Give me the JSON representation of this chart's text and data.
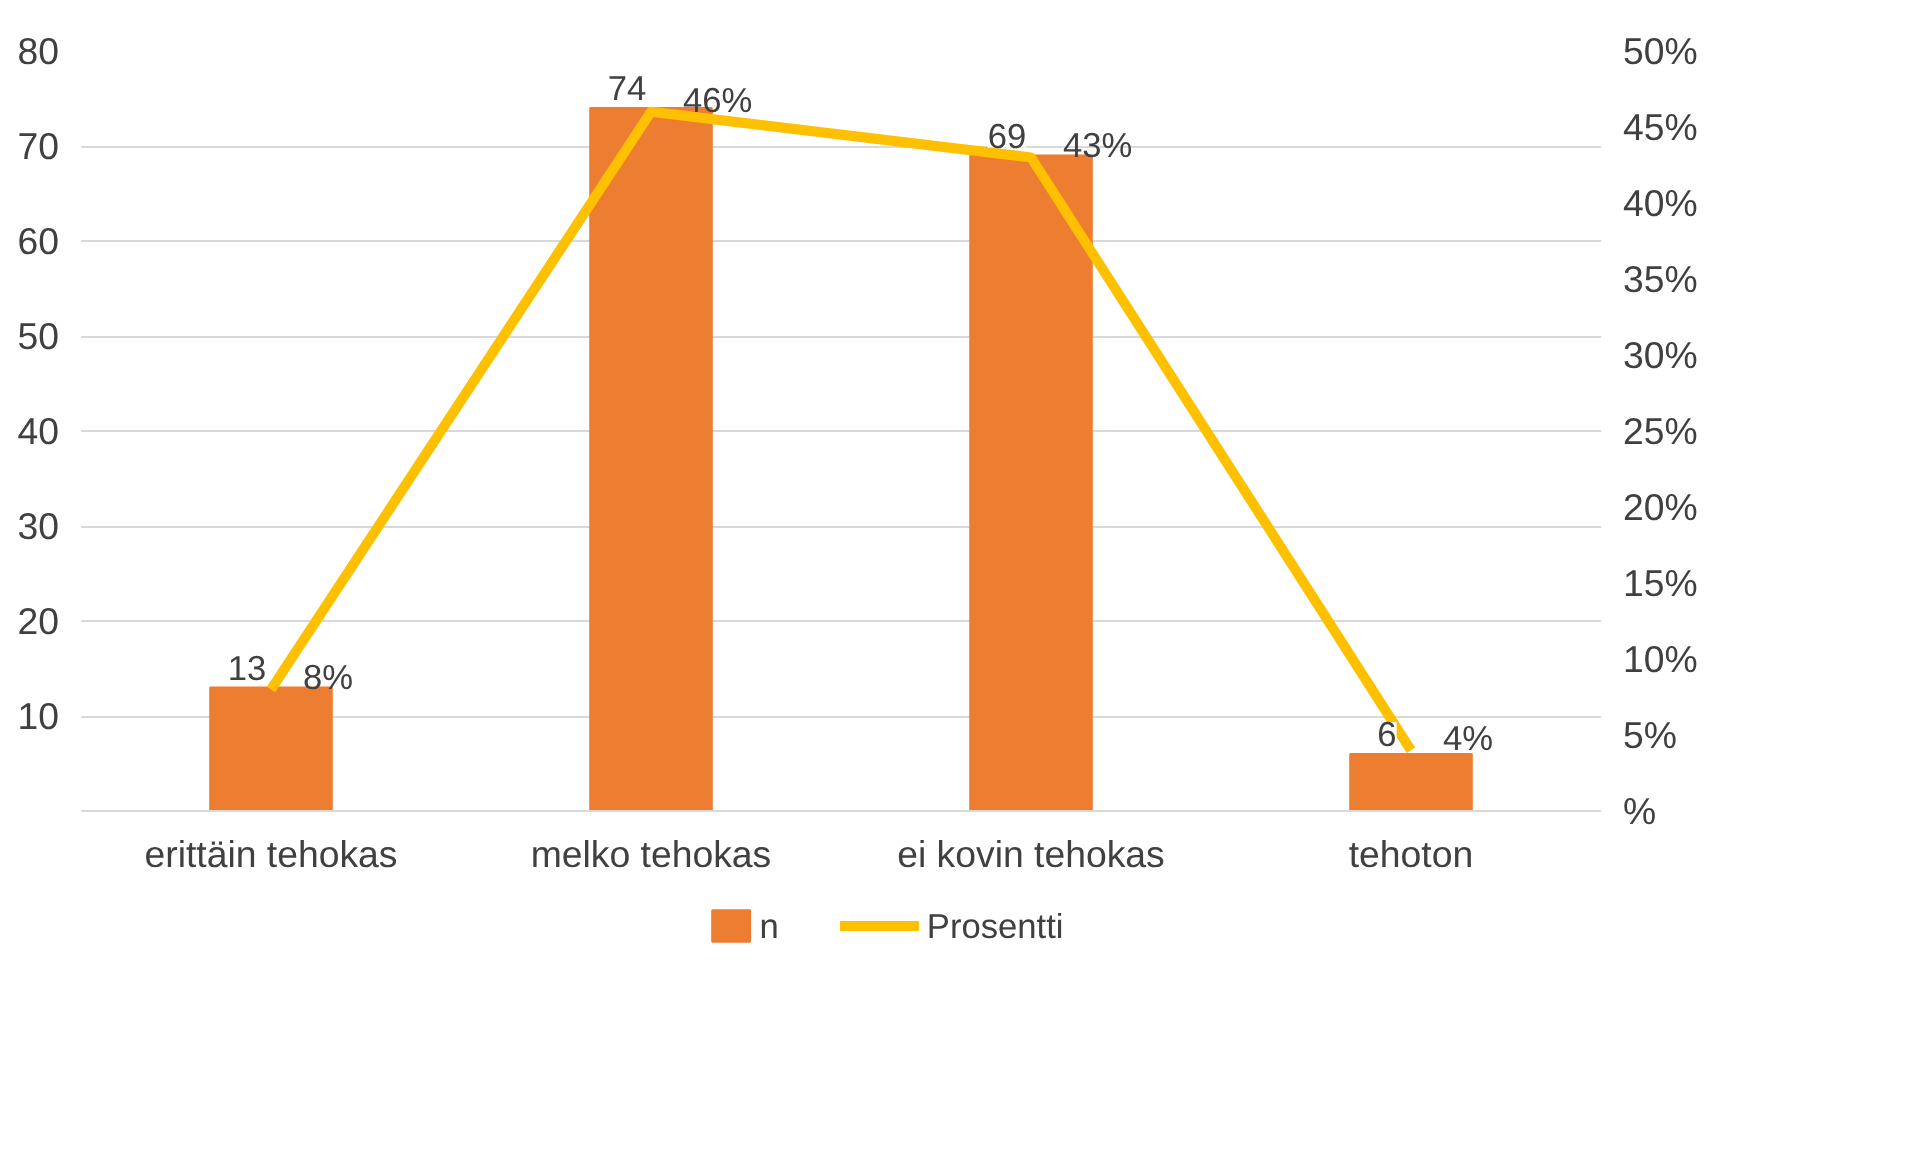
{
  "chart_data": {
    "type": "bar",
    "categories": [
      "erittäin tehokas",
      "melko tehokas",
      "ei kovin tehokas",
      "tehoton"
    ],
    "series": [
      {
        "name": "n",
        "type": "bar",
        "color": "#ed7d31",
        "values": [
          13,
          74,
          69,
          6
        ],
        "value_labels": [
          "13",
          "74",
          "69",
          "6"
        ]
      },
      {
        "name": "Prosentti",
        "type": "line",
        "axis": "y2",
        "color": "#ffc000",
        "values": [
          8,
          46,
          43,
          4
        ],
        "value_labels": [
          "8%",
          "46%",
          "43%",
          "4%"
        ]
      }
    ],
    "ylim": [
      0,
      80
    ],
    "yticks": [
      {
        "value": 0,
        "label": null
      },
      10,
      20,
      30,
      40,
      50,
      60,
      70,
      80
    ],
    "y2lim": [
      0,
      50
    ],
    "y2ticks": [
      {
        "value": 0,
        "label": "%"
      },
      {
        "value": 5,
        "label": "5%"
      },
      {
        "value": 10,
        "label": "10%"
      },
      {
        "value": 15,
        "label": "15%"
      },
      {
        "value": 20,
        "label": "20%"
      },
      {
        "value": 25,
        "label": "25%"
      },
      {
        "value": 30,
        "label": "30%"
      },
      {
        "value": 35,
        "label": "35%"
      },
      {
        "value": 40,
        "label": "40%"
      },
      {
        "value": 45,
        "label": "45%"
      },
      {
        "value": 50,
        "label": "50%"
      }
    ],
    "grid": "y",
    "legend": "bottom",
    "marker": "none",
    "line_style": "solid"
  }
}
